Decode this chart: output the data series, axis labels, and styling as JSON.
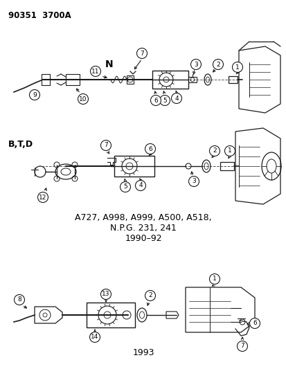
{
  "title": "90351  3700A",
  "bg_color": "#ffffff",
  "line_color": "#1a1a1a",
  "text_color": "#000000",
  "label_n": "N",
  "label_btd": "B,T,D",
  "line1": "A727, A998, A999, A500, A518,",
  "line2": "N.P.G. 231, 241",
  "line3": "1990–92",
  "label_1993": "1993",
  "fig_width": 4.14,
  "fig_height": 5.33,
  "dpi": 100
}
